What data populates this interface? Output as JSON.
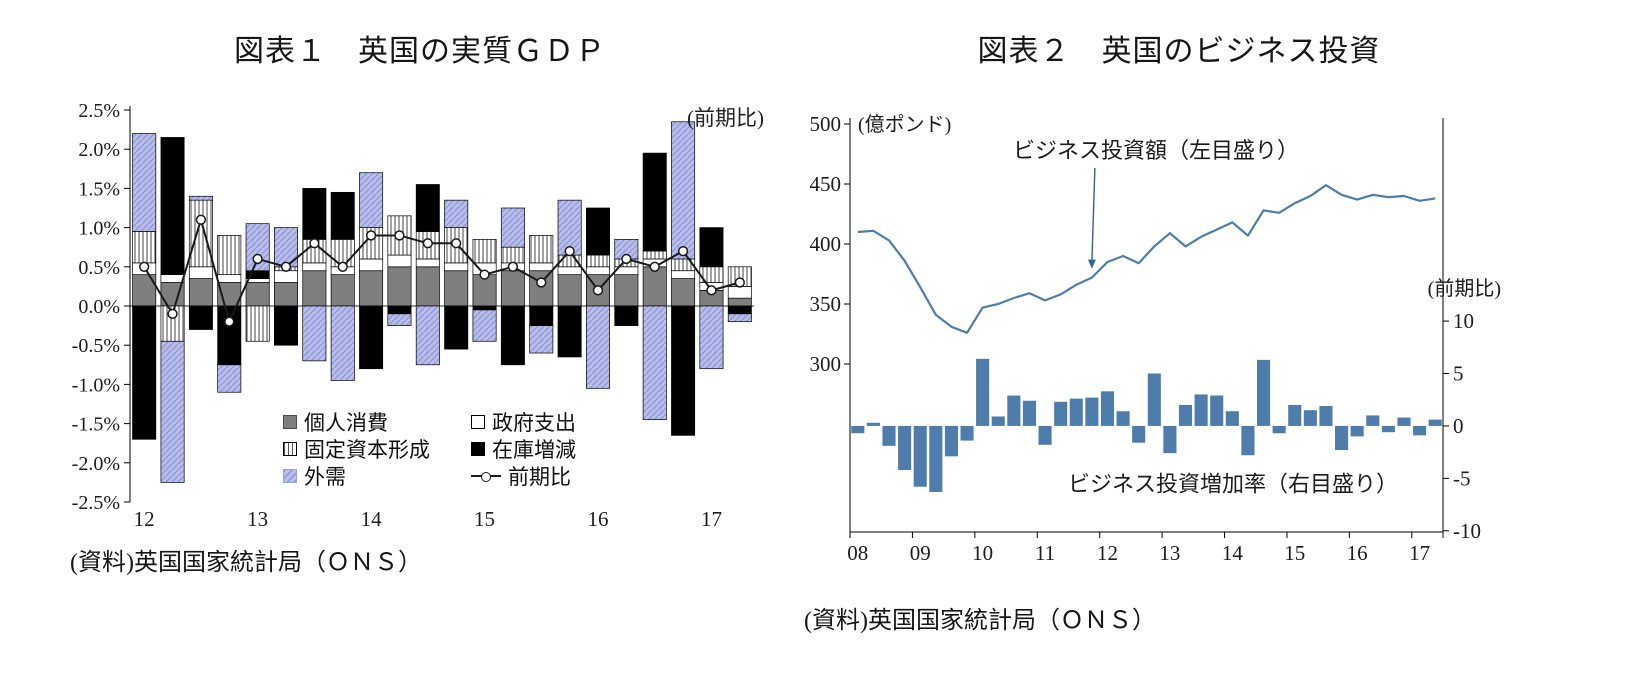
{
  "figure1": {
    "title": "図表１　英国の実質ＧＤＰ",
    "unit_note": "(前期比)",
    "source": "(資料)英国国家統計局（ＯＮＳ）",
    "legend": [
      {
        "key": "consumption",
        "label": "個人消費"
      },
      {
        "key": "government",
        "label": "政府支出"
      },
      {
        "key": "fixed",
        "label": "固定資本形成"
      },
      {
        "key": "inventory",
        "label": "在庫増減"
      },
      {
        "key": "external",
        "label": "外需"
      },
      {
        "key": "line",
        "label": "前期比"
      }
    ]
  },
  "figure2": {
    "title": "図表２　英国のビジネス投資",
    "left_unit": "(億ポンド)",
    "right_unit": "(前期比)",
    "line_annotation": "ビジネス投資額（左目盛り）",
    "bar_annotation": "ビジネス投資増加率（右目盛り）",
    "source": "(資料)英国国家統計局（ＯＮＳ）"
  },
  "chart_data": [
    {
      "type": "bar",
      "subtype": "stacked-contribution-bars-with-line",
      "title": "図表１　英国の実質ＧＤＰ",
      "unit": "%（前期比）",
      "categories": [
        "2012Q1",
        "2012Q2",
        "2012Q3",
        "2012Q4",
        "2013Q1",
        "2013Q2",
        "2013Q3",
        "2013Q4",
        "2014Q1",
        "2014Q2",
        "2014Q3",
        "2014Q4",
        "2015Q1",
        "2015Q2",
        "2015Q3",
        "2015Q4",
        "2016Q1",
        "2016Q2",
        "2016Q3",
        "2016Q4",
        "2017Q1",
        "2017Q2"
      ],
      "x_tick_labels": [
        {
          "label": "12",
          "index": 0
        },
        {
          "label": "13",
          "index": 4
        },
        {
          "label": "14",
          "index": 8
        },
        {
          "label": "15",
          "index": 12
        },
        {
          "label": "16",
          "index": 16
        },
        {
          "label": "17",
          "index": 20
        }
      ],
      "ylim": [
        -2.5,
        2.5
      ],
      "y_tick_labels": [
        "2.5%",
        "2.0%",
        "1.5%",
        "1.0%",
        "0.5%",
        "0.0%",
        "-0.5%",
        "-1.0%",
        "-1.5%",
        "-2.0%",
        "-2.5%"
      ],
      "grid": false,
      "legend_position": "inside-bottom-center",
      "series": [
        {
          "name": "個人消費",
          "key": "consumption",
          "role": "bar",
          "color": "#7f7f7f",
          "values": [
            0.4,
            0.3,
            0.35,
            0.3,
            0.3,
            0.3,
            0.45,
            0.4,
            0.45,
            0.5,
            0.5,
            0.45,
            0.4,
            0.45,
            0.45,
            0.4,
            0.4,
            0.4,
            0.5,
            0.35,
            0.2,
            0.1
          ]
        },
        {
          "name": "政府支出",
          "key": "government",
          "role": "bar",
          "color": "#ffffff",
          "values": [
            0.15,
            0.1,
            0.15,
            0.1,
            0.05,
            0.15,
            0.1,
            0.1,
            0.15,
            0.15,
            0.1,
            0.1,
            0.15,
            0.1,
            0.1,
            0.1,
            0.1,
            0.1,
            0.1,
            0.1,
            0.1,
            0.15
          ]
        },
        {
          "name": "固定資本形成",
          "key": "fixed",
          "role": "bar",
          "pattern": "vertical-hatch",
          "color": "#ffffff",
          "values": [
            0.4,
            -0.45,
            0.85,
            0.5,
            -0.45,
            0.05,
            0.3,
            0.35,
            0.4,
            0.5,
            0.35,
            0.45,
            0.3,
            0.2,
            0.35,
            0.15,
            0.15,
            0.1,
            0.1,
            0.15,
            0.2,
            0.25
          ]
        },
        {
          "name": "在庫増減",
          "key": "inventory",
          "role": "bar",
          "color": "#000000",
          "values": [
            -1.7,
            1.75,
            -0.3,
            -0.75,
            0.1,
            -0.5,
            0.65,
            0.6,
            -0.8,
            -0.1,
            0.6,
            -0.55,
            -0.05,
            -0.75,
            -0.25,
            -0.65,
            0.6,
            -0.25,
            1.25,
            -1.65,
            0.5,
            -0.1
          ]
        },
        {
          "name": "外需",
          "key": "external",
          "role": "bar",
          "pattern": "diagonal-hatch",
          "color": "#b9bdea",
          "values": [
            1.25,
            -1.8,
            0.05,
            -0.35,
            0.6,
            0.5,
            -0.7,
            -0.95,
            0.7,
            -0.15,
            -0.75,
            0.35,
            -0.4,
            0.5,
            -0.35,
            0.7,
            -1.05,
            0.25,
            -1.45,
            1.75,
            -0.8,
            -0.1
          ]
        },
        {
          "name": "前期比",
          "key": "qoq-line",
          "role": "line",
          "color": "#1a1a1a",
          "marker": "open-circle",
          "values": [
            0.5,
            -0.1,
            1.1,
            -0.2,
            0.6,
            0.5,
            0.8,
            0.5,
            0.9,
            0.9,
            0.8,
            0.8,
            0.4,
            0.5,
            0.3,
            0.7,
            0.2,
            0.6,
            0.5,
            0.7,
            0.2,
            0.3
          ]
        }
      ]
    },
    {
      "type": "line",
      "subtype": "line-with-bars-dual-axis",
      "title": "図表２　英国のビジネス投資",
      "categories": [
        "2008Q1",
        "2008Q2",
        "2008Q3",
        "2008Q4",
        "2009Q1",
        "2009Q2",
        "2009Q3",
        "2009Q4",
        "2010Q1",
        "2010Q2",
        "2010Q3",
        "2010Q4",
        "2011Q1",
        "2011Q2",
        "2011Q3",
        "2011Q4",
        "2012Q1",
        "2012Q2",
        "2012Q3",
        "2012Q4",
        "2013Q1",
        "2013Q2",
        "2013Q3",
        "2013Q4",
        "2014Q1",
        "2014Q2",
        "2014Q3",
        "2014Q4",
        "2015Q1",
        "2015Q2",
        "2015Q3",
        "2015Q4",
        "2016Q1",
        "2016Q2",
        "2016Q3",
        "2016Q4",
        "2017Q1",
        "2017Q2"
      ],
      "x_tick_labels": [
        {
          "label": "08",
          "index": 0
        },
        {
          "label": "09",
          "index": 4
        },
        {
          "label": "10",
          "index": 8
        },
        {
          "label": "11",
          "index": 12
        },
        {
          "label": "12",
          "index": 16
        },
        {
          "label": "13",
          "index": 20
        },
        {
          "label": "14",
          "index": 24
        },
        {
          "label": "15",
          "index": 28
        },
        {
          "label": "16",
          "index": 32
        },
        {
          "label": "17",
          "index": 36
        }
      ],
      "left_axis": {
        "unit": "億ポンド",
        "ticks": [
          500,
          450,
          400,
          350,
          300
        ],
        "range_drawn": [
          160,
          500
        ]
      },
      "right_axis": {
        "unit": "前期比",
        "ticks": [
          10,
          5,
          0,
          -5,
          -10
        ]
      },
      "grid": false,
      "series": [
        {
          "name": "ビジネス投資額（左目盛り）",
          "key": "investment-level",
          "role": "line",
          "axis": "left",
          "color": "#4f7dab",
          "values": [
            410,
            411,
            403,
            386,
            364,
            341,
            331,
            326,
            347,
            350,
            355,
            359,
            353,
            358,
            366,
            372,
            385,
            390,
            384,
            398,
            409,
            398,
            406,
            412,
            418,
            407,
            428,
            426,
            434,
            440,
            449,
            441,
            437,
            441,
            439,
            440,
            436,
            438
          ]
        },
        {
          "name": "ビジネス投資増加率（右目盛り）",
          "key": "investment-growth",
          "role": "bar",
          "axis": "right",
          "color": "#4f7dab",
          "values": [
            -0.7,
            0.3,
            -1.9,
            -4.2,
            -5.8,
            -6.3,
            -2.9,
            -1.4,
            6.4,
            0.9,
            2.9,
            2.4,
            -1.8,
            2.3,
            2.6,
            2.7,
            3.3,
            1.4,
            -1.6,
            5.0,
            -2.6,
            2.0,
            3.0,
            2.9,
            1.4,
            -2.8,
            6.3,
            -0.7,
            2.0,
            1.5,
            1.9,
            -2.3,
            -1.0,
            1.0,
            -0.6,
            0.8,
            -0.9,
            0.6
          ]
        }
      ]
    }
  ]
}
